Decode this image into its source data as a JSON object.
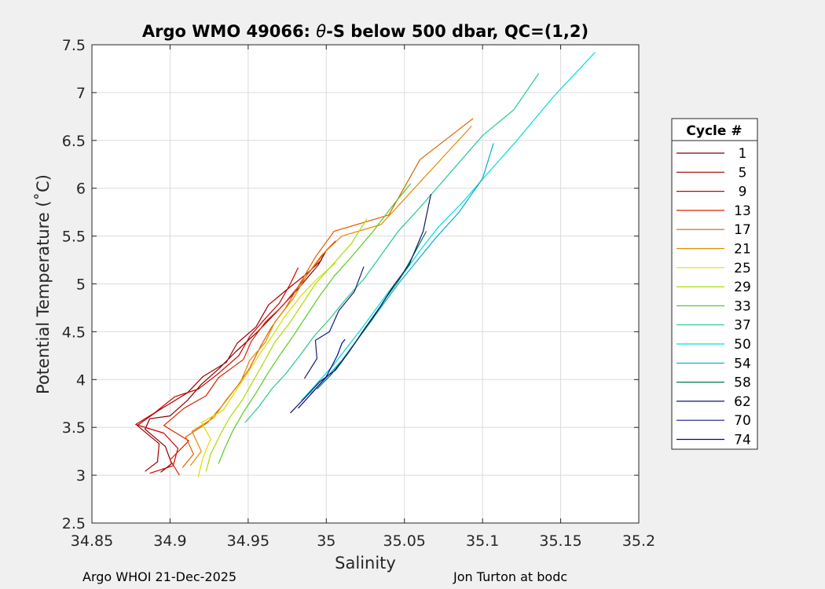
{
  "chart_data": {
    "type": "line",
    "title_prefix": "Argo WMO 49066: ",
    "title_symbol": "θ",
    "title_suffix": "-S below 500 dbar,  QC=(1,2)",
    "xlabel": "Salinity",
    "ylabel": "Potential Temperature (˚C)",
    "xlim": [
      34.85,
      35.2
    ],
    "ylim": [
      2.5,
      7.5
    ],
    "xticks": [
      34.85,
      34.9,
      34.95,
      35,
      35.05,
      35.1,
      35.15,
      35.2
    ],
    "xtick_labels": [
      "34.85",
      "34.9",
      "34.95",
      "35",
      "35.05",
      "35.1",
      "35.15",
      "35.2"
    ],
    "yticks": [
      2.5,
      3,
      3.5,
      4,
      4.5,
      5,
      5.5,
      6,
      6.5,
      7,
      7.5
    ],
    "ytick_labels": [
      "2.5",
      "3",
      "3.5",
      "4",
      "4.5",
      "5",
      "5.5",
      "6",
      "6.5",
      "7",
      "7.5"
    ],
    "grid": true,
    "legend_title": "Cycle #",
    "legend_position": "right",
    "series": [
      {
        "name": "1",
        "color": "#800000",
        "points": [
          [
            34.894,
            3.03
          ],
          [
            34.901,
            3.12
          ],
          [
            34.897,
            3.3
          ],
          [
            34.884,
            3.48
          ],
          [
            34.887,
            3.59
          ],
          [
            34.9,
            3.62
          ],
          [
            34.911,
            3.78
          ],
          [
            34.92,
            3.95
          ],
          [
            34.931,
            4.11
          ],
          [
            34.942,
            4.29
          ],
          [
            34.956,
            4.5
          ],
          [
            34.969,
            4.72
          ],
          [
            34.982,
            4.95
          ],
          [
            34.995,
            5.2
          ],
          [
            35.0,
            5.35
          ]
        ]
      },
      {
        "name": "5",
        "color": "#a00000",
        "points": [
          [
            34.884,
            3.04
          ],
          [
            34.892,
            3.14
          ],
          [
            34.893,
            3.33
          ],
          [
            34.879,
            3.52
          ],
          [
            34.892,
            3.67
          ],
          [
            34.911,
            3.86
          ],
          [
            34.921,
            4.03
          ],
          [
            34.936,
            4.18
          ],
          [
            34.943,
            4.38
          ],
          [
            34.955,
            4.55
          ],
          [
            34.963,
            4.78
          ],
          [
            34.974,
            4.93
          ],
          [
            34.987,
            5.1
          ],
          [
            34.997,
            5.25
          ]
        ]
      },
      {
        "name": "9",
        "color": "#cc0000",
        "points": [
          [
            34.887,
            3.02
          ],
          [
            34.902,
            3.1
          ],
          [
            34.905,
            3.28
          ],
          [
            34.896,
            3.44
          ],
          [
            34.878,
            3.53
          ],
          [
            34.89,
            3.65
          ],
          [
            34.903,
            3.82
          ],
          [
            34.918,
            3.9
          ],
          [
            34.93,
            4.05
          ],
          [
            34.944,
            4.25
          ],
          [
            34.951,
            4.45
          ],
          [
            34.96,
            4.62
          ],
          [
            34.97,
            4.8
          ],
          [
            34.977,
            5.0
          ],
          [
            34.982,
            5.17
          ]
        ]
      },
      {
        "name": "13",
        "color": "#dd2200",
        "points": [
          [
            34.906,
            3.0
          ],
          [
            34.9,
            3.16
          ],
          [
            34.912,
            3.36
          ],
          [
            34.896,
            3.52
          ],
          [
            34.909,
            3.7
          ],
          [
            34.923,
            3.83
          ],
          [
            34.931,
            4.02
          ],
          [
            34.947,
            4.21
          ],
          [
            34.952,
            4.4
          ],
          [
            34.961,
            4.6
          ],
          [
            34.972,
            4.77
          ],
          [
            34.981,
            4.95
          ],
          [
            34.99,
            5.14
          ],
          [
            35.0,
            5.35
          ],
          [
            35.006,
            5.45
          ]
        ]
      },
      {
        "name": "17",
        "color": "#e06000",
        "points": [
          [
            34.908,
            3.08
          ],
          [
            34.915,
            3.22
          ],
          [
            34.91,
            3.4
          ],
          [
            34.924,
            3.55
          ],
          [
            34.933,
            3.72
          ],
          [
            34.943,
            3.93
          ],
          [
            34.951,
            4.12
          ],
          [
            34.958,
            4.35
          ],
          [
            34.965,
            4.55
          ],
          [
            34.974,
            4.75
          ],
          [
            34.983,
            5.0
          ],
          [
            34.993,
            5.28
          ],
          [
            35.005,
            5.55
          ],
          [
            35.04,
            5.72
          ],
          [
            35.06,
            6.3
          ],
          [
            35.094,
            6.73
          ]
        ]
      },
      {
        "name": "21",
        "color": "#e08a00",
        "points": [
          [
            34.913,
            3.1
          ],
          [
            34.92,
            3.25
          ],
          [
            34.914,
            3.46
          ],
          [
            34.928,
            3.6
          ],
          [
            34.936,
            3.79
          ],
          [
            34.945,
            3.97
          ],
          [
            34.951,
            4.2
          ],
          [
            34.961,
            4.39
          ],
          [
            34.967,
            4.6
          ],
          [
            34.979,
            4.85
          ],
          [
            34.987,
            5.08
          ],
          [
            34.997,
            5.3
          ],
          [
            35.01,
            5.5
          ],
          [
            35.035,
            5.62
          ],
          [
            35.093,
            6.65
          ]
        ]
      },
      {
        "name": "25",
        "color": "#dddd00",
        "points": [
          [
            34.918,
            2.98
          ],
          [
            34.921,
            3.18
          ],
          [
            34.926,
            3.38
          ],
          [
            34.92,
            3.55
          ],
          [
            34.934,
            3.68
          ],
          [
            34.942,
            3.88
          ],
          [
            34.949,
            4.05
          ],
          [
            34.958,
            4.28
          ],
          [
            34.966,
            4.47
          ],
          [
            34.973,
            4.65
          ],
          [
            34.984,
            4.88
          ],
          [
            34.994,
            5.05
          ],
          [
            35.006,
            5.22
          ]
        ]
      },
      {
        "name": "29",
        "color": "#aadd00",
        "points": [
          [
            34.923,
            3.04
          ],
          [
            34.926,
            3.22
          ],
          [
            34.932,
            3.42
          ],
          [
            34.938,
            3.6
          ],
          [
            34.946,
            3.78
          ],
          [
            34.953,
            3.98
          ],
          [
            34.96,
            4.18
          ],
          [
            34.967,
            4.39
          ],
          [
            34.976,
            4.58
          ],
          [
            34.985,
            4.8
          ],
          [
            34.993,
            5.0
          ],
          [
            35.004,
            5.2
          ],
          [
            35.016,
            5.42
          ],
          [
            35.026,
            5.68
          ]
        ]
      },
      {
        "name": "33",
        "color": "#55cc22",
        "points": [
          [
            34.931,
            3.12
          ],
          [
            34.935,
            3.28
          ],
          [
            34.94,
            3.46
          ],
          [
            34.947,
            3.66
          ],
          [
            34.955,
            3.86
          ],
          [
            34.962,
            4.05
          ],
          [
            34.97,
            4.25
          ],
          [
            34.979,
            4.46
          ],
          [
            34.987,
            4.66
          ],
          [
            34.996,
            4.88
          ],
          [
            35.005,
            5.08
          ],
          [
            35.017,
            5.3
          ],
          [
            35.03,
            5.55
          ],
          [
            35.044,
            5.85
          ],
          [
            35.054,
            6.05
          ]
        ]
      },
      {
        "name": "37",
        "color": "#22cc88",
        "points": [
          [
            34.948,
            3.55
          ],
          [
            34.957,
            3.72
          ],
          [
            34.965,
            3.9
          ],
          [
            34.974,
            4.06
          ],
          [
            34.983,
            4.25
          ],
          [
            34.992,
            4.45
          ],
          [
            35.003,
            4.65
          ],
          [
            35.013,
            4.85
          ],
          [
            35.024,
            5.05
          ],
          [
            35.035,
            5.3
          ],
          [
            35.046,
            5.55
          ],
          [
            35.06,
            5.8
          ],
          [
            35.076,
            6.1
          ],
          [
            35.1,
            6.55
          ],
          [
            35.12,
            6.82
          ],
          [
            35.136,
            7.2
          ]
        ]
      },
      {
        "name": "50",
        "color": "#00dddd",
        "points": [
          [
            34.984,
            3.78
          ],
          [
            34.994,
            3.96
          ],
          [
            35.004,
            4.14
          ],
          [
            35.013,
            4.33
          ],
          [
            35.022,
            4.52
          ],
          [
            35.031,
            4.72
          ],
          [
            35.04,
            4.92
          ],
          [
            35.05,
            5.12
          ],
          [
            35.06,
            5.35
          ],
          [
            35.072,
            5.6
          ],
          [
            35.087,
            5.85
          ],
          [
            35.103,
            6.15
          ],
          [
            35.122,
            6.5
          ],
          [
            35.145,
            6.95
          ],
          [
            35.172,
            7.42
          ]
        ]
      },
      {
        "name": "54",
        "color": "#00aacc",
        "points": [
          [
            34.99,
            3.85
          ],
          [
            35.0,
            4.02
          ],
          [
            35.01,
            4.2
          ],
          [
            35.019,
            4.4
          ],
          [
            35.028,
            4.6
          ],
          [
            35.037,
            4.8
          ],
          [
            35.046,
            5.0
          ],
          [
            35.057,
            5.22
          ],
          [
            35.07,
            5.48
          ],
          [
            35.085,
            5.75
          ],
          [
            35.1,
            6.1
          ],
          [
            35.107,
            6.47
          ]
        ]
      },
      {
        "name": "58",
        "color": "#007755",
        "points": [
          [
            34.994,
            3.9
          ],
          [
            35.003,
            4.05
          ],
          [
            35.012,
            4.24
          ],
          [
            35.021,
            4.44
          ],
          [
            35.03,
            4.64
          ],
          [
            35.038,
            4.85
          ],
          [
            35.047,
            5.05
          ],
          [
            35.055,
            5.28
          ],
          [
            35.064,
            5.55
          ]
        ]
      },
      {
        "name": "62",
        "color": "#0a1a60",
        "points": [
          [
            34.977,
            3.65
          ],
          [
            34.987,
            3.82
          ],
          [
            34.996,
            3.98
          ],
          [
            35.006,
            4.1
          ],
          [
            35.015,
            4.3
          ],
          [
            35.024,
            4.52
          ],
          [
            35.034,
            4.75
          ],
          [
            35.043,
            4.98
          ],
          [
            35.053,
            5.2
          ],
          [
            35.062,
            5.55
          ],
          [
            35.067,
            5.94
          ]
        ]
      },
      {
        "name": "70",
        "color": "#1a1a80",
        "points": [
          [
            34.986,
            4.01
          ],
          [
            34.994,
            4.22
          ],
          [
            34.993,
            4.41
          ],
          [
            35.002,
            4.5
          ],
          [
            35.008,
            4.72
          ],
          [
            35.018,
            4.92
          ],
          [
            35.024,
            5.18
          ]
        ]
      },
      {
        "name": "74",
        "color": "#0000aa",
        "points": [
          [
            34.982,
            3.7
          ],
          [
            34.992,
            3.88
          ],
          [
            35.0,
            4.03
          ],
          [
            35.007,
            4.25
          ],
          [
            35.01,
            4.38
          ],
          [
            35.012,
            4.42
          ]
        ]
      }
    ]
  },
  "footer": {
    "left": "Argo WHOI 21-Dec-2025",
    "right": "Jon Turton at bodc"
  }
}
